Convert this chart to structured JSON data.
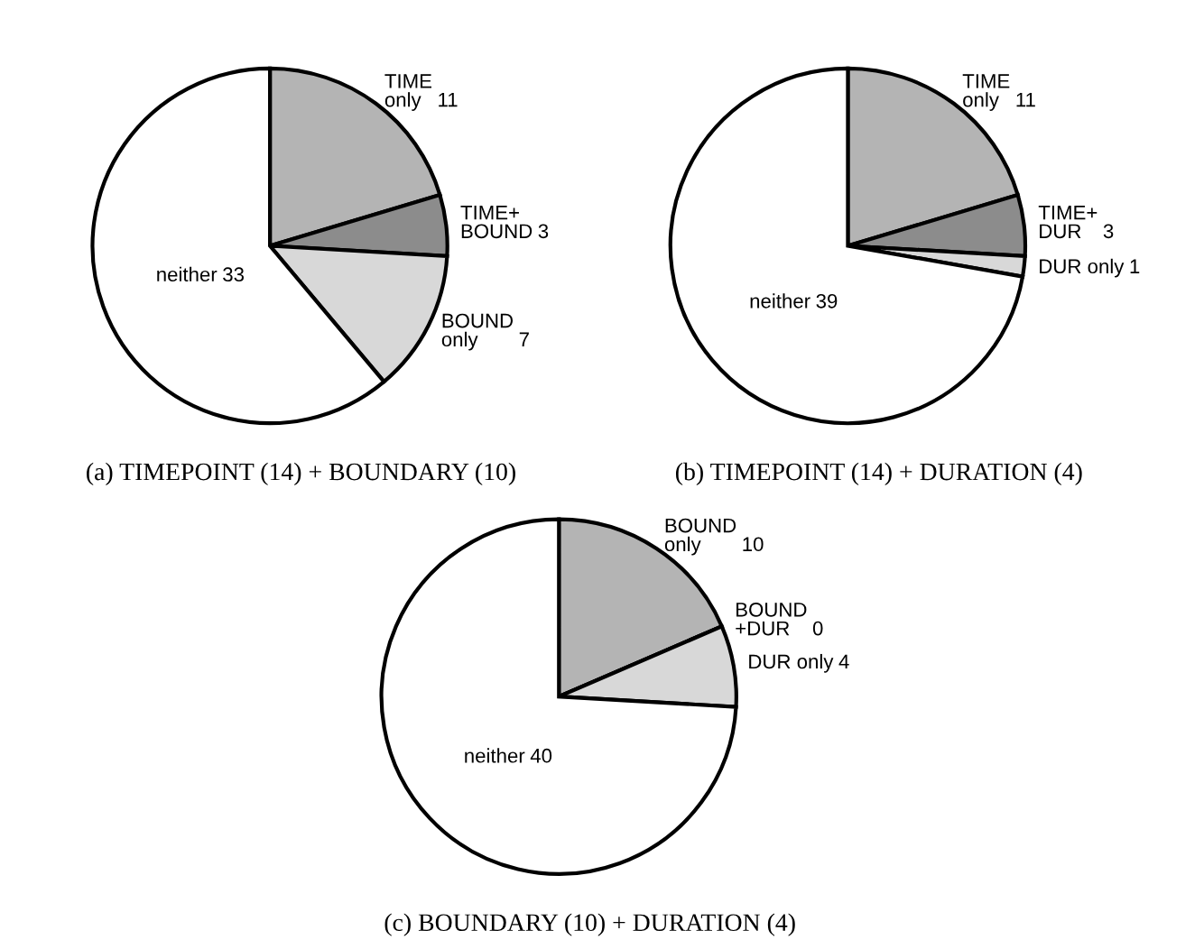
{
  "chart_data": [
    {
      "type": "pie",
      "title": "(a) TIMEPOINT (14) + BOUNDARY (10)",
      "categories": [
        "TIME\nonly",
        "TIME+\nBOUND",
        "BOUND\nonly",
        "neither"
      ],
      "values": [
        11,
        3,
        7,
        33
      ],
      "colors": [
        "#b4b4b4",
        "#8c8c8c",
        "#d8d8d8",
        "#ffffff"
      ],
      "data_labels": true,
      "legend": false
    },
    {
      "type": "pie",
      "title": "(b) TIMEPOINT (14) + DURATION (4)",
      "categories": [
        "TIME\nonly",
        "TIME+\nDUR",
        "DUR only",
        "neither"
      ],
      "values": [
        11,
        3,
        1,
        39
      ],
      "colors": [
        "#b4b4b4",
        "#8c8c8c",
        "#d8d8d8",
        "#ffffff"
      ],
      "data_labels": true,
      "legend": false
    },
    {
      "type": "pie",
      "title": "(c) BOUNDARY (10) + DURATION (4)",
      "categories": [
        "BOUND\nonly",
        "BOUND\n+DUR",
        "DUR only",
        "neither"
      ],
      "values": [
        10,
        0,
        4,
        40
      ],
      "value_labels": [
        "10",
        "0",
        "4",
        "40"
      ],
      "colors": [
        "#b4b4b4",
        "#8c8c8c",
        "#d8d8d8",
        "#ffffff"
      ],
      "legend": false
    }
  ]
}
